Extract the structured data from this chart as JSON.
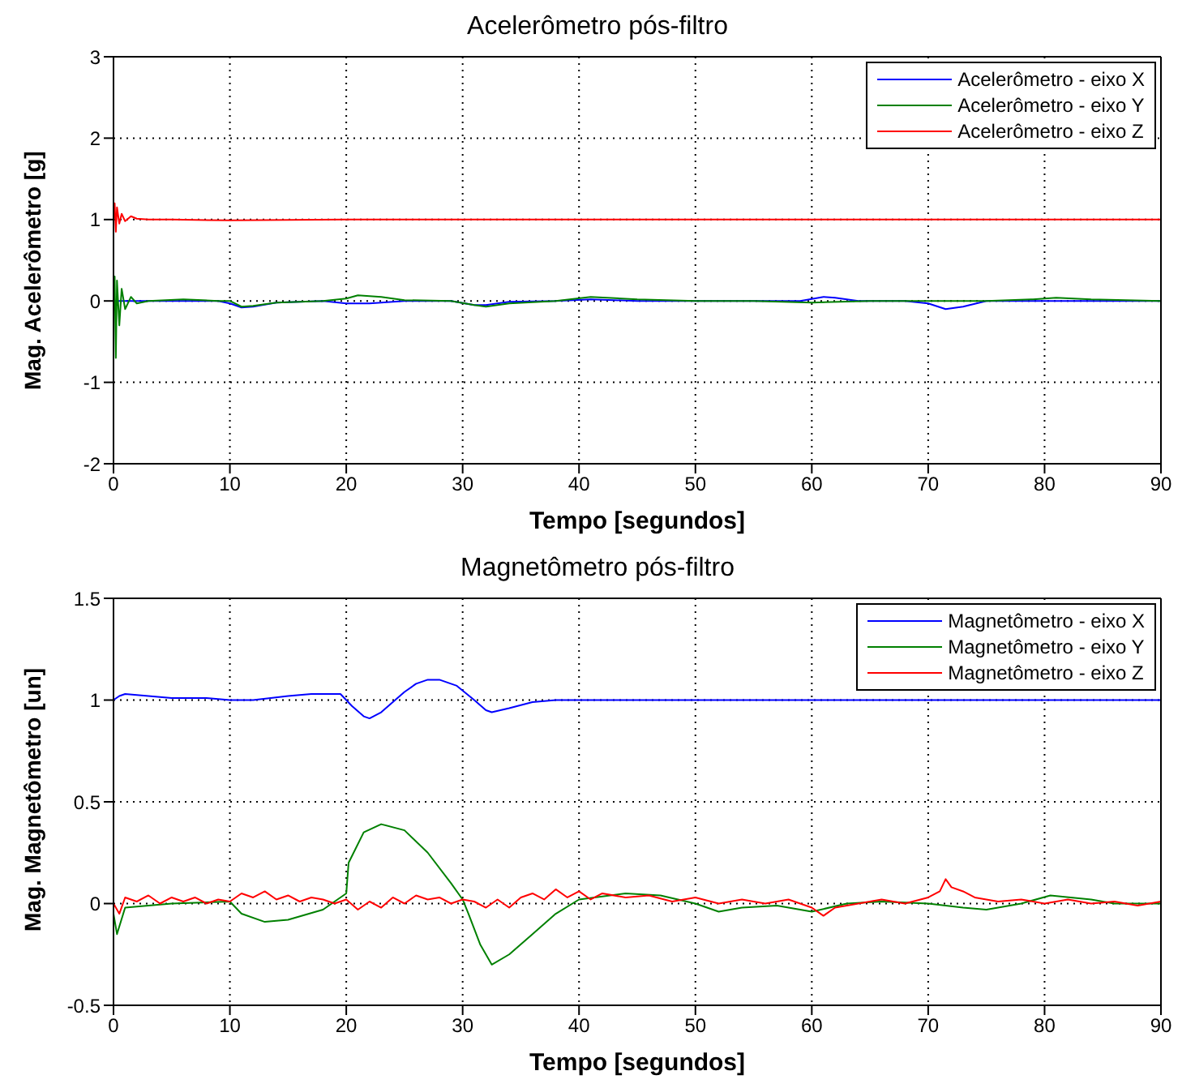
{
  "chart_data": [
    {
      "type": "line",
      "title": "Acelerômetro pós-filtro",
      "xlabel": "Tempo [segundos]",
      "ylabel": "Mag. Acelerômetro [g]",
      "xlim": [
        0,
        90
      ],
      "xticks": [
        0,
        10,
        20,
        30,
        40,
        50,
        60,
        70,
        80,
        90
      ],
      "ylim": [
        -2,
        3
      ],
      "yticks": [
        -2,
        -1,
        0,
        1,
        2,
        3
      ],
      "grid": true,
      "legend": "top right",
      "line_style": "solid",
      "series": [
        {
          "name": "Acelerômetro - eixo X",
          "color": "#0000ff",
          "x": [
            0,
            1,
            3,
            6,
            9,
            10,
            11,
            12,
            14,
            18,
            20,
            22,
            25,
            29,
            31,
            32,
            34,
            38,
            41,
            45,
            50,
            55,
            59,
            61,
            62,
            64,
            68,
            70,
            71.5,
            73,
            75,
            80,
            85,
            90
          ],
          "values": [
            0,
            0,
            0,
            0,
            0,
            -0.03,
            -0.08,
            -0.07,
            -0.02,
            0,
            -0.03,
            -0.03,
            0,
            0,
            -0.05,
            -0.05,
            -0.01,
            0,
            0.02,
            0,
            0,
            0,
            0,
            0.05,
            0.04,
            0,
            0,
            -0.03,
            -0.1,
            -0.07,
            0,
            0,
            0,
            0
          ]
        },
        {
          "name": "Acelerômetro - eixo Y",
          "color": "#008000",
          "x": [
            0,
            0.1,
            0.2,
            0.3,
            0.5,
            0.7,
            1,
            1.5,
            2,
            3,
            6,
            9,
            10,
            11,
            12,
            14,
            18,
            20,
            21,
            23,
            25,
            29,
            31,
            32,
            34,
            38,
            41,
            45,
            50,
            55,
            60,
            65,
            70,
            75,
            79,
            81,
            84,
            90
          ],
          "values": [
            0,
            0.3,
            -0.7,
            0.25,
            -0.3,
            0.15,
            -0.1,
            0.05,
            -0.03,
            0,
            0.02,
            0,
            0,
            -0.07,
            -0.06,
            -0.02,
            0,
            0.03,
            0.07,
            0.05,
            0.01,
            0,
            -0.05,
            -0.07,
            -0.03,
            0,
            0.05,
            0.02,
            0,
            0,
            -0.02,
            0,
            0,
            0,
            0.02,
            0.04,
            0.02,
            0
          ]
        },
        {
          "name": "Acelerômetro - eixo Z",
          "color": "#ff0000",
          "x": [
            0,
            0.1,
            0.2,
            0.3,
            0.5,
            0.7,
            1,
            1.5,
            2,
            3,
            5,
            10,
            20,
            30,
            40,
            50,
            60,
            70,
            80,
            90
          ],
          "values": [
            1,
            1.2,
            0.85,
            1.15,
            0.95,
            1.07,
            0.98,
            1.04,
            1.01,
            1,
            1,
            0.99,
            1,
            1,
            1,
            1,
            1,
            1,
            1,
            1
          ]
        }
      ]
    },
    {
      "type": "line",
      "title": "Magnetômetro pós-filtro",
      "xlabel": "Tempo [segundos]",
      "ylabel": "Mag. Magnetômetro [un]",
      "xlim": [
        0,
        90
      ],
      "xticks": [
        0,
        10,
        20,
        30,
        40,
        50,
        60,
        70,
        80,
        90
      ],
      "ylim": [
        -0.5,
        1.5
      ],
      "yticks": [
        -0.5,
        0,
        0.5,
        1,
        1.5
      ],
      "grid": true,
      "legend": "top right",
      "line_style": "solid",
      "series": [
        {
          "name": "Magnetômetro - eixo X",
          "color": "#0000ff",
          "x": [
            0,
            0.5,
            1,
            3,
            5,
            8,
            10,
            12,
            15,
            17,
            19.5,
            20.5,
            21.5,
            22,
            23,
            24,
            25,
            26,
            27,
            28,
            29.5,
            31,
            32,
            32.5,
            34,
            36,
            38,
            40,
            50,
            60,
            70,
            80,
            90
          ],
          "values": [
            1.0,
            1.02,
            1.03,
            1.02,
            1.01,
            1.01,
            1.0,
            1.0,
            1.02,
            1.03,
            1.03,
            0.97,
            0.92,
            0.91,
            0.94,
            0.99,
            1.04,
            1.08,
            1.1,
            1.1,
            1.07,
            1.0,
            0.95,
            0.94,
            0.96,
            0.99,
            1.0,
            1.0,
            1.0,
            1.0,
            1.0,
            1.0,
            1.0
          ]
        },
        {
          "name": "Magnetômetro - eixo Y",
          "color": "#008000",
          "x": [
            0,
            0.3,
            1,
            5,
            10,
            11,
            13,
            15,
            18,
            20,
            20.2,
            21.5,
            23,
            25,
            27,
            29,
            30,
            30.5,
            31.5,
            32.5,
            34,
            36,
            38,
            40,
            44,
            47,
            50,
            52,
            54,
            57,
            60,
            63,
            66,
            70,
            73,
            75,
            78,
            80.5,
            84,
            86,
            90
          ],
          "values": [
            -0.05,
            -0.15,
            -0.02,
            0,
            0.01,
            -0.05,
            -0.09,
            -0.08,
            -0.03,
            0.05,
            0.2,
            0.35,
            0.39,
            0.36,
            0.25,
            0.1,
            0.02,
            -0.05,
            -0.2,
            -0.3,
            -0.25,
            -0.15,
            -0.05,
            0.02,
            0.05,
            0.04,
            0,
            -0.04,
            -0.02,
            -0.01,
            -0.04,
            0,
            0.01,
            0,
            -0.02,
            -0.03,
            0,
            0.04,
            0.02,
            0,
            0
          ]
        },
        {
          "name": "Magnetômetro - eixo Z",
          "color": "#ff0000",
          "x": [
            0,
            0.5,
            1,
            2,
            3,
            4,
            5,
            6,
            7,
            8,
            9,
            10,
            11,
            12,
            13,
            14,
            15,
            16,
            17,
            18,
            19,
            20,
            21,
            22,
            23,
            24,
            25,
            26,
            27,
            28,
            29,
            30,
            31,
            32,
            33,
            34,
            35,
            36,
            37,
            38,
            39,
            40,
            41,
            42,
            44,
            46,
            48,
            50,
            52,
            54,
            56,
            58,
            60,
            61,
            62,
            64,
            66,
            68,
            70,
            71,
            71.5,
            72,
            73,
            74,
            76,
            78,
            80,
            82,
            84,
            86,
            88,
            90
          ],
          "values": [
            0,
            -0.05,
            0.03,
            0.01,
            0.04,
            0.0,
            0.03,
            0.01,
            0.03,
            0.0,
            0.02,
            0.01,
            0.05,
            0.03,
            0.06,
            0.02,
            0.04,
            0.01,
            0.03,
            0.02,
            0.0,
            0.02,
            -0.03,
            0.01,
            -0.02,
            0.03,
            0.0,
            0.04,
            0.02,
            0.03,
            0.0,
            0.02,
            0.01,
            -0.02,
            0.02,
            -0.02,
            0.03,
            0.05,
            0.02,
            0.07,
            0.03,
            0.06,
            0.02,
            0.05,
            0.03,
            0.04,
            0.01,
            0.03,
            0.0,
            0.02,
            0.0,
            0.02,
            -0.02,
            -0.06,
            -0.02,
            0.0,
            0.02,
            0.0,
            0.03,
            0.06,
            0.12,
            0.08,
            0.06,
            0.03,
            0.01,
            0.02,
            0.0,
            0.02,
            0.0,
            0.01,
            -0.01,
            0.01
          ]
        }
      ]
    }
  ]
}
